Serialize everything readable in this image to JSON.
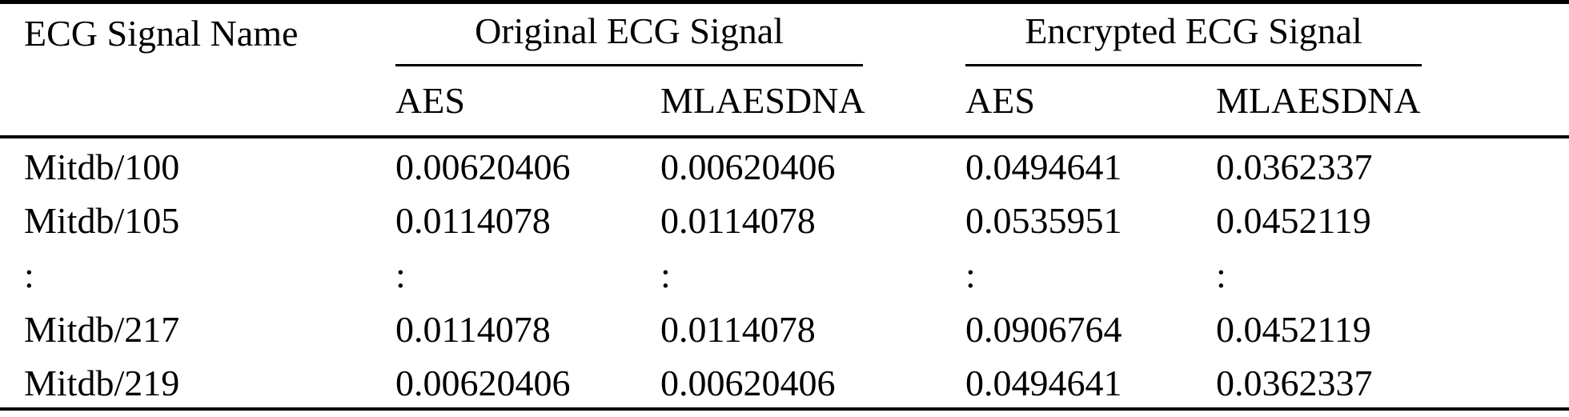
{
  "table": {
    "name_header": "ECG Signal Name",
    "groups": {
      "original": {
        "label": "Original ECG Signal"
      },
      "encrypted": {
        "label": "Encrypted ECG Signal"
      }
    },
    "subheaders": [
      "AES",
      "MLAESDNA",
      "AES",
      "MLAESDNA"
    ],
    "rows": [
      {
        "name": "Mitdb/100",
        "values": [
          "0.00620406",
          "0.00620406",
          "0.0494641",
          "0.0362337"
        ]
      },
      {
        "name": "Mitdb/105",
        "values": [
          "0.0114078",
          "0.0114078",
          "0.0535951",
          "0.0452119"
        ]
      },
      {
        "name": ":",
        "values": [
          ":",
          ":",
          ":",
          ":"
        ]
      },
      {
        "name": "Mitdb/217",
        "values": [
          "0.0114078",
          "0.0114078",
          "0.0906764",
          "0.0452119"
        ]
      },
      {
        "name": "Mitdb/219",
        "values": [
          "0.00620406",
          "0.00620406",
          "0.0494641",
          "0.0362337"
        ]
      }
    ],
    "colors": {
      "text": "#000000",
      "background": "#ffffff",
      "rule": "#000000"
    }
  }
}
